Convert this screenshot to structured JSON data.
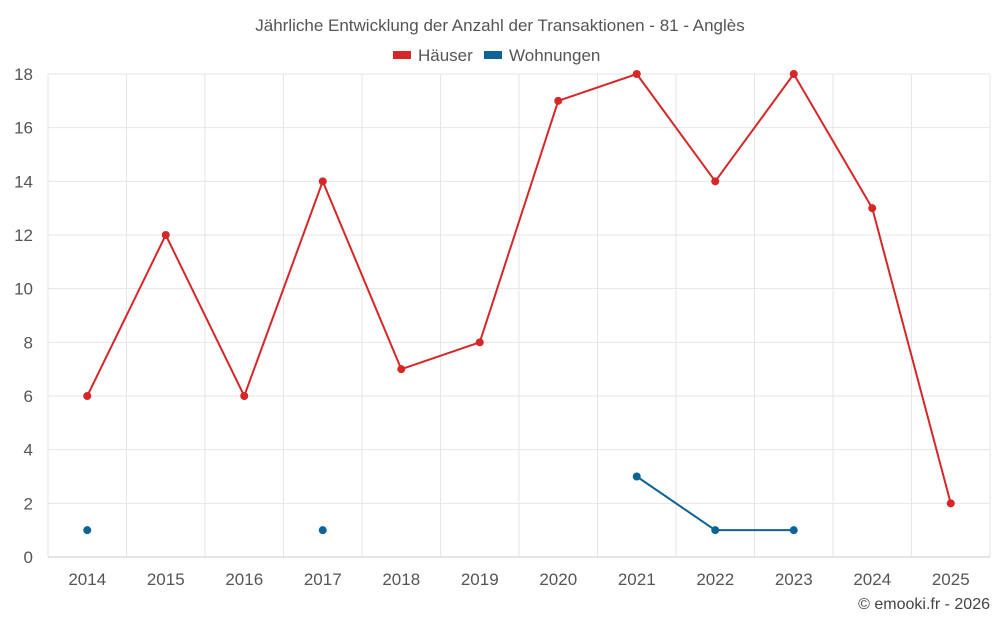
{
  "chart_data": {
    "type": "line",
    "title": "Jährliche Entwicklung der Anzahl der Transaktionen - 81 - Anglès",
    "categories": [
      "2014",
      "2015",
      "2016",
      "2017",
      "2018",
      "2019",
      "2020",
      "2021",
      "2022",
      "2023",
      "2024",
      "2025"
    ],
    "ylim": [
      0,
      18
    ],
    "yticks": [
      0,
      2,
      4,
      6,
      8,
      10,
      12,
      14,
      16,
      18
    ],
    "grid": true,
    "legend_position": "top-center",
    "series": [
      {
        "name": "Häuser",
        "color": "#d62728",
        "values": [
          6,
          12,
          6,
          14,
          7,
          8,
          17,
          18,
          14,
          18,
          13,
          2
        ]
      },
      {
        "name": "Wohnungen",
        "color": "#0d6296",
        "values": [
          1,
          null,
          null,
          1,
          null,
          null,
          null,
          3,
          1,
          1,
          null,
          null
        ]
      }
    ],
    "credit": "© emooki.fr - 2026"
  }
}
